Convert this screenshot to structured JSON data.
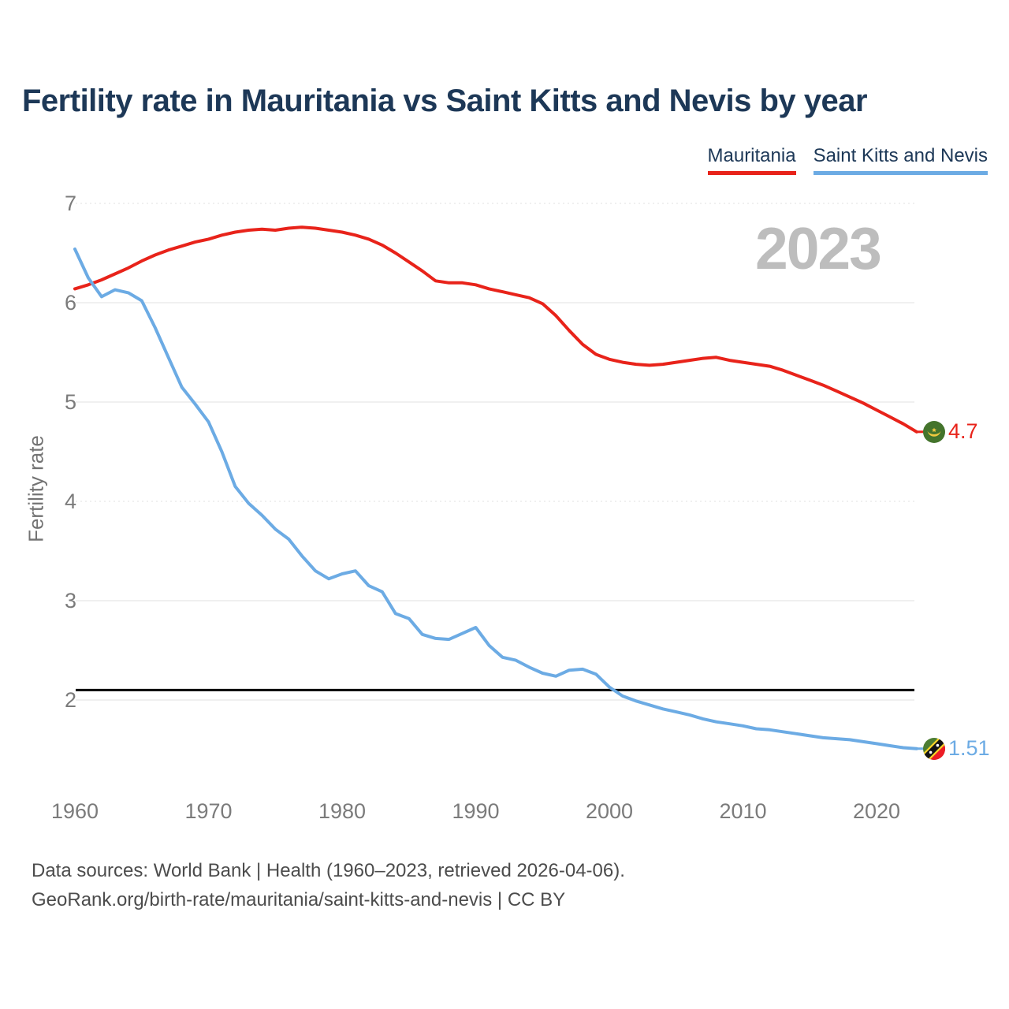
{
  "title": "Fertility rate in Mauritania vs Saint Kitts and Nevis by year",
  "watermark": "2023",
  "legend": [
    {
      "label": "Mauritania",
      "color": "#e8231a"
    },
    {
      "label": "Saint Kitts and Nevis",
      "color": "#6cabe4"
    }
  ],
  "end_labels": {
    "mauritania": "4.7",
    "saint_kitts": "1.51"
  },
  "footer": {
    "line1": "Data sources: World Bank | Health (1960–2023, retrieved 2026-04-06).",
    "line2": "GeoRank.org/birth-rate/mauritania/saint-kitts-and-nevis | CC BY"
  },
  "colors": {
    "mauritania_line": "#e8231a",
    "saint_kitts_line": "#6cabe4",
    "title_text": "#1d3857",
    "axis_text": "#7b7b7b",
    "gridline": "#ececec",
    "replacement_line": "#000000",
    "watermark_text": "#bdbdbd"
  },
  "chart_data": {
    "type": "line",
    "title": "Fertility rate in Mauritania vs Saint Kitts and Nevis by year",
    "xlabel": "",
    "ylabel": "Fertility rate",
    "ylim": [
      1.4,
      7.1
    ],
    "xlim": [
      1960,
      2023
    ],
    "yticks": [
      7,
      6,
      5,
      4,
      3,
      2
    ],
    "xticks": [
      1960,
      1970,
      1980,
      1990,
      2000,
      2010,
      2020
    ],
    "grid": true,
    "legend_position": "top-right",
    "replacement_level": 2.1,
    "years": [
      1960,
      1961,
      1962,
      1963,
      1964,
      1965,
      1966,
      1967,
      1968,
      1969,
      1970,
      1971,
      1972,
      1973,
      1974,
      1975,
      1976,
      1977,
      1978,
      1979,
      1980,
      1981,
      1982,
      1983,
      1984,
      1985,
      1986,
      1987,
      1988,
      1989,
      1990,
      1991,
      1992,
      1993,
      1994,
      1995,
      1996,
      1997,
      1998,
      1999,
      2000,
      2001,
      2002,
      2003,
      2004,
      2005,
      2006,
      2007,
      2008,
      2009,
      2010,
      2011,
      2012,
      2013,
      2014,
      2015,
      2016,
      2017,
      2018,
      2019,
      2020,
      2021,
      2022,
      2023
    ],
    "series": [
      {
        "name": "Mauritania",
        "color": "#e8231a",
        "end_label": "4.7",
        "end_value": 4.7,
        "values": [
          6.14,
          6.18,
          6.23,
          6.29,
          6.35,
          6.42,
          6.48,
          6.53,
          6.57,
          6.61,
          6.64,
          6.68,
          6.71,
          6.73,
          6.74,
          6.73,
          6.75,
          6.76,
          6.75,
          6.73,
          6.71,
          6.68,
          6.64,
          6.58,
          6.5,
          6.41,
          6.32,
          6.22,
          6.2,
          6.2,
          6.18,
          6.14,
          6.11,
          6.08,
          6.05,
          5.99,
          5.87,
          5.72,
          5.58,
          5.48,
          5.43,
          5.4,
          5.38,
          5.37,
          5.38,
          5.4,
          5.42,
          5.44,
          5.45,
          5.42,
          5.4,
          5.38,
          5.36,
          5.32,
          5.27,
          5.22,
          5.17,
          5.11,
          5.05,
          4.99,
          4.92,
          4.85,
          4.78,
          4.7
        ]
      },
      {
        "name": "Saint Kitts and Nevis",
        "color": "#6cabe4",
        "end_label": "1.51",
        "end_value": 1.51,
        "values": [
          6.54,
          6.25,
          6.06,
          6.13,
          6.1,
          6.02,
          5.75,
          5.45,
          5.15,
          4.98,
          4.8,
          4.5,
          4.15,
          3.98,
          3.86,
          3.72,
          3.62,
          3.45,
          3.3,
          3.22,
          3.27,
          3.3,
          3.15,
          3.09,
          2.87,
          2.82,
          2.66,
          2.62,
          2.61,
          2.67,
          2.73,
          2.55,
          2.43,
          2.4,
          2.33,
          2.27,
          2.24,
          2.3,
          2.31,
          2.26,
          2.13,
          2.04,
          1.99,
          1.95,
          1.91,
          1.88,
          1.85,
          1.81,
          1.78,
          1.76,
          1.74,
          1.71,
          1.7,
          1.68,
          1.66,
          1.64,
          1.62,
          1.61,
          1.6,
          1.58,
          1.56,
          1.54,
          1.52,
          1.51
        ]
      }
    ]
  }
}
